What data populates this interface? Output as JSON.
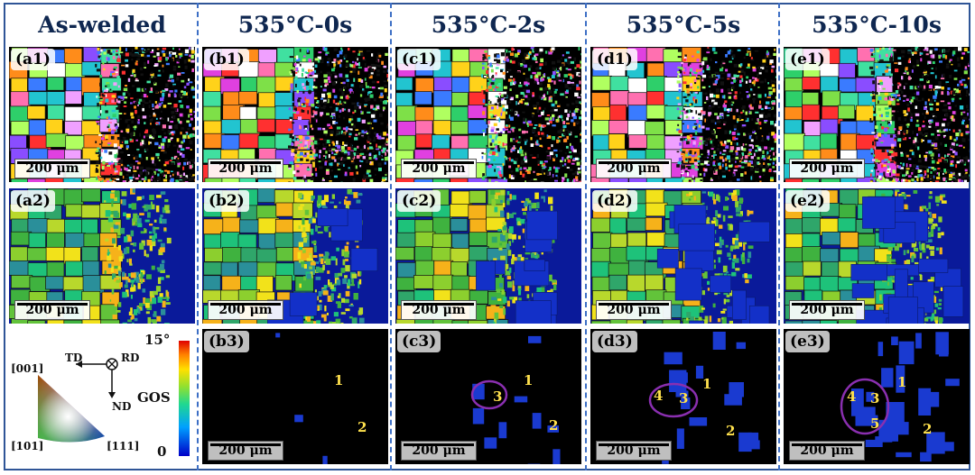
{
  "columns": [
    {
      "title": "As-welded",
      "rows": [
        "(a1)",
        "(a2)"
      ]
    },
    {
      "title": "535°C-0s",
      "rows": [
        "(b1)",
        "(b2)",
        "(b3)"
      ]
    },
    {
      "title": "535°C-2s",
      "rows": [
        "(c1)",
        "(c2)",
        "(c3)"
      ]
    },
    {
      "title": "535°C-5s",
      "rows": [
        "(d1)",
        "(d2)",
        "(d3)"
      ]
    },
    {
      "title": "535°C-10s",
      "rows": [
        "(e1)",
        "(e2)",
        "(e3)"
      ]
    }
  ],
  "scale_label": "200 μm",
  "legend": {
    "td": "TD",
    "rd": "RD",
    "nd": "ND",
    "dir_001": "[001]",
    "dir_101": "[101]",
    "dir_111": "[111]",
    "gos_label": "GOS",
    "gos_max": "15°",
    "gos_min": "0"
  },
  "annotations": {
    "b3": [
      "1",
      "2"
    ],
    "c3": [
      "3",
      "1",
      "2"
    ],
    "d3": [
      "4",
      "3",
      "1",
      "2"
    ],
    "e3": [
      "4",
      "3",
      "5",
      "1",
      "2"
    ]
  }
}
